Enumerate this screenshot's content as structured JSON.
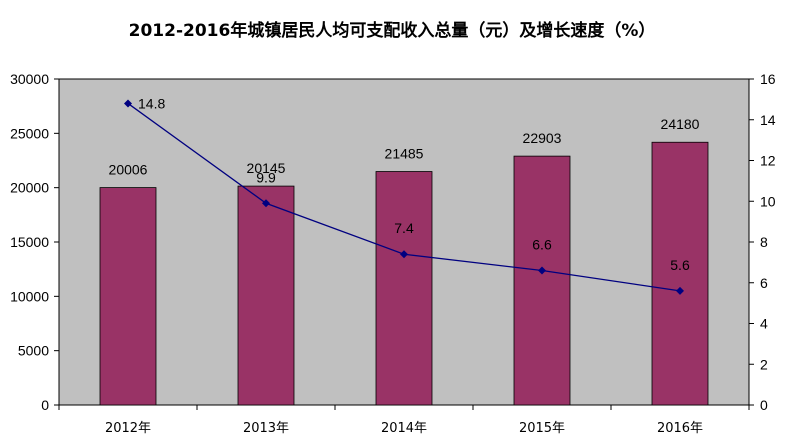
{
  "chart_data": {
    "type": "bar",
    "title": "2012-2016年城镇居民人均可支配收入总量（元）及增长速度（%）",
    "categories": [
      "2012年",
      "2013年",
      "2014年",
      "2015年",
      "2016年"
    ],
    "series": [
      {
        "type": "bar",
        "axis": "left",
        "values": [
          20006,
          20145,
          21485,
          22903,
          24180
        ]
      },
      {
        "type": "line",
        "axis": "right",
        "values": [
          14.8,
          9.9,
          7.4,
          6.6,
          5.6
        ]
      }
    ],
    "y_left": {
      "min": 0,
      "max": 30000,
      "step": 5000
    },
    "y_right": {
      "min": 0,
      "max": 16,
      "step": 2
    },
    "bar_color": "#993366",
    "line_color": "#000080",
    "plot_background": "#c0c0c0",
    "grid": false,
    "legend": "none"
  }
}
